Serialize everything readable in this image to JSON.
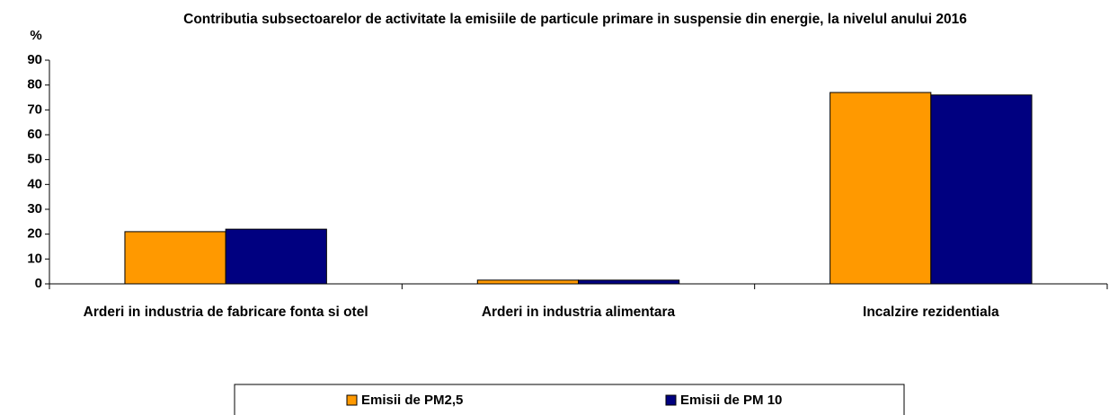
{
  "chart_data": {
    "type": "bar",
    "title": "Contributia subsectoarelor de activitate la emisiile de particule primare in suspensie din energie, la nivelul anului 2016",
    "y_label": "%",
    "categories": [
      "Arderi in industria de fabricare fonta si otel",
      "Arderi in industria alimentara",
      "Incalzire rezidentiala"
    ],
    "series": [
      {
        "name": "Emisii de PM2,5",
        "color": "#ff9900",
        "values": [
          21,
          1.5,
          77
        ]
      },
      {
        "name": "Emisii de PM 10",
        "color": "#000080",
        "values": [
          22,
          1.5,
          76
        ]
      }
    ],
    "ylim": [
      0,
      90
    ],
    "yticks": [
      0,
      10,
      20,
      30,
      40,
      50,
      60,
      70,
      80,
      90
    ],
    "grid": false,
    "legend": "bottom"
  }
}
